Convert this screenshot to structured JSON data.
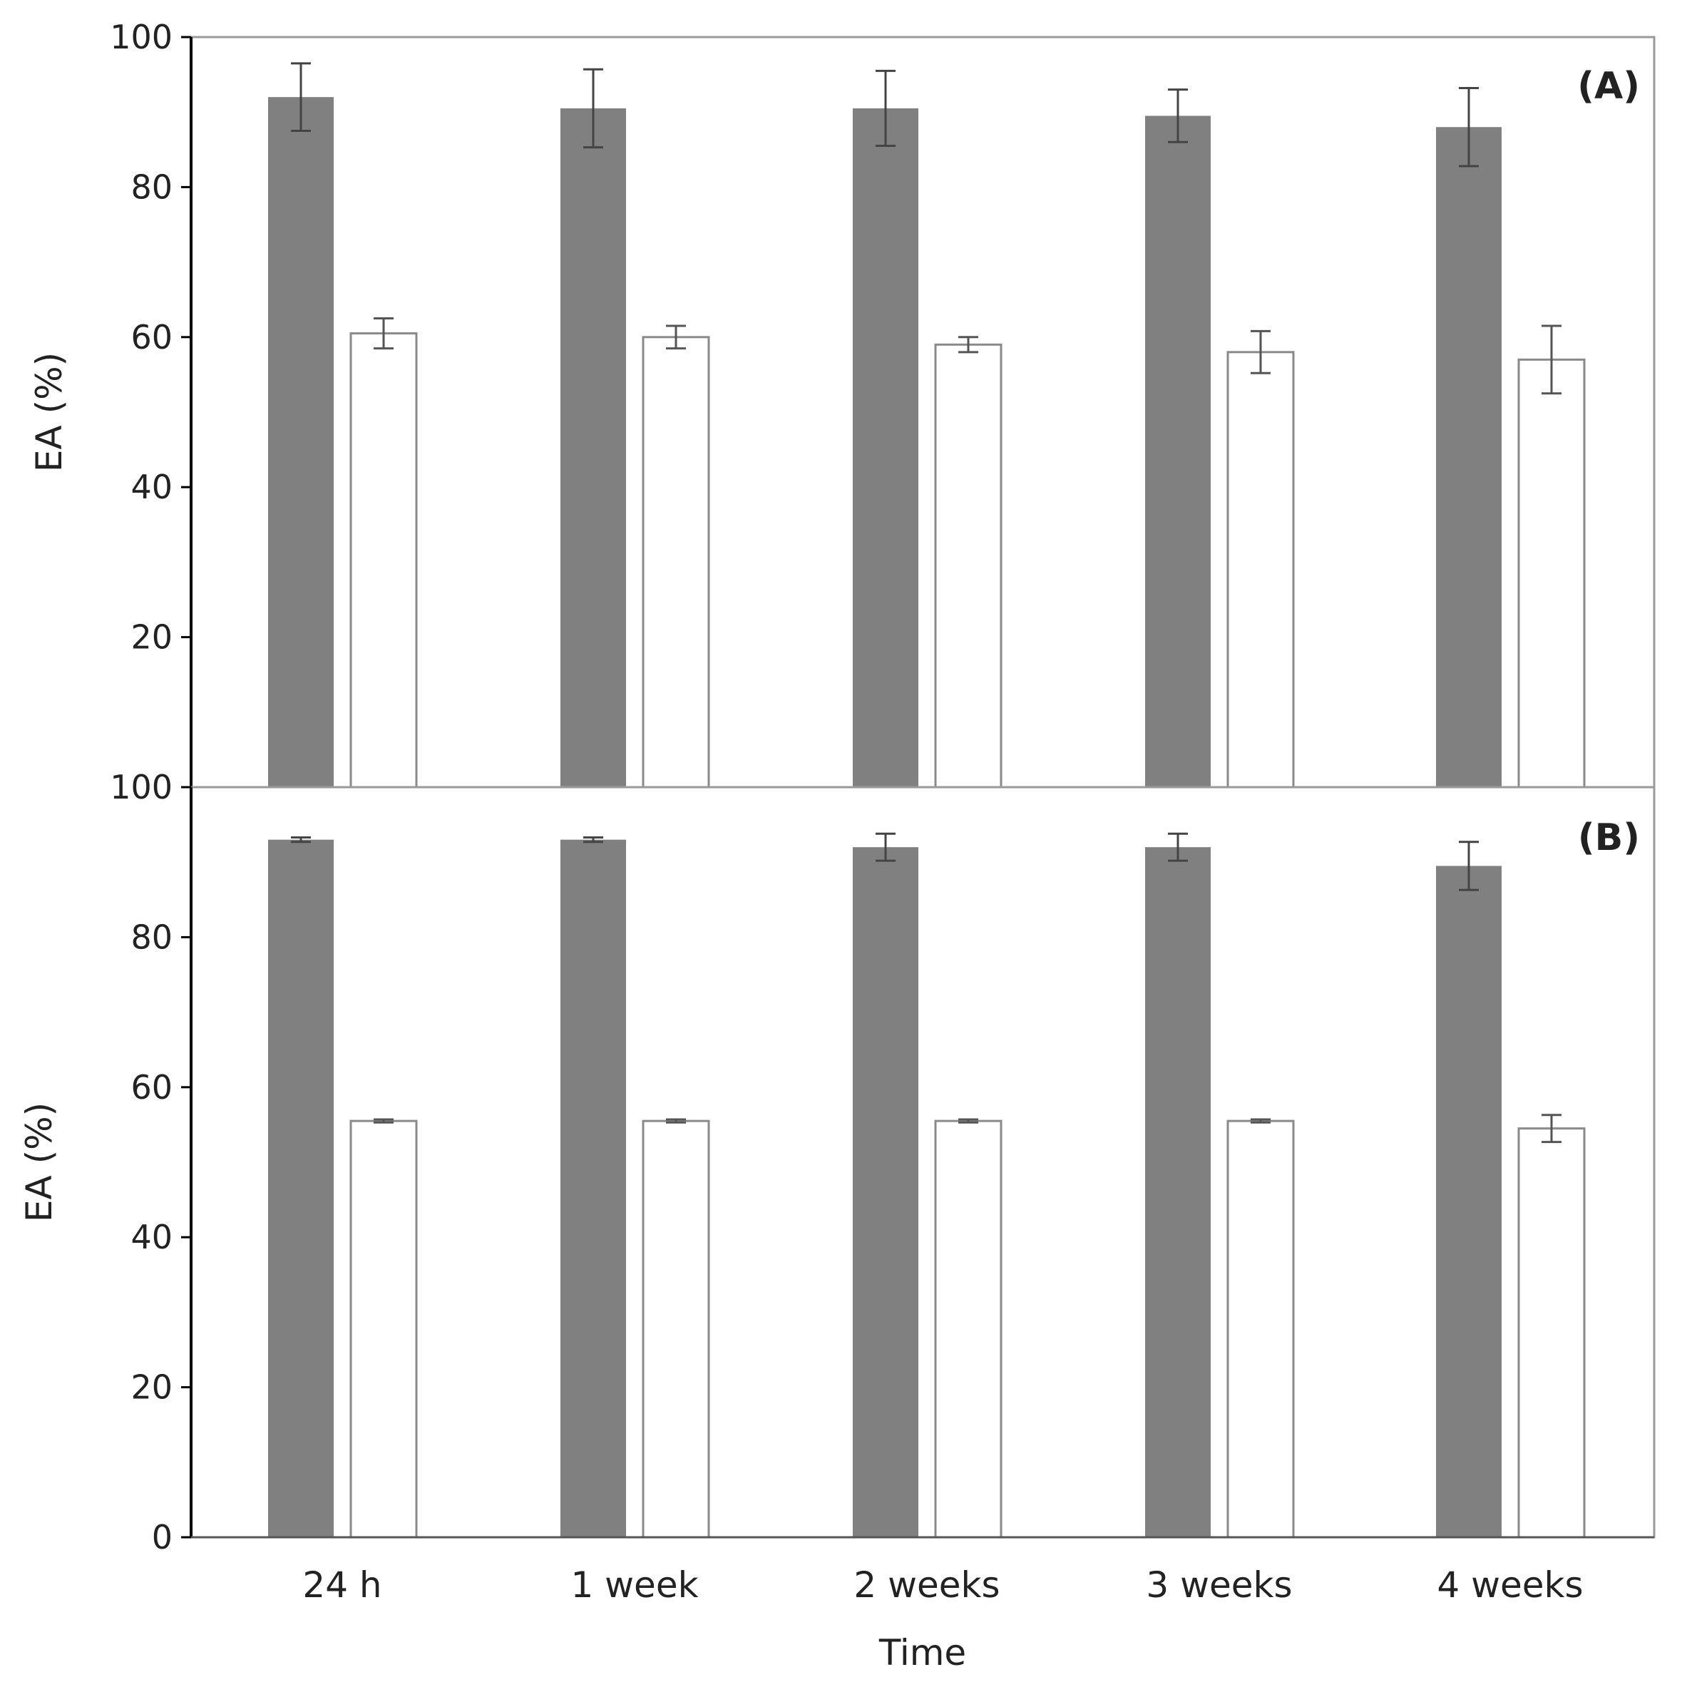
{
  "chart_data": [
    {
      "type": "bar",
      "panel_label": "(A)",
      "ylabel": "EA (%)",
      "xlabel": "",
      "ylim": [
        0,
        100
      ],
      "yticks": [
        20,
        40,
        60,
        80,
        100
      ],
      "categories": [
        "24 h",
        "1 week",
        "2 weeks",
        "3 weeks",
        "4 weeks"
      ],
      "series": [
        {
          "name": "filled",
          "color": "#808080",
          "values": [
            92,
            90.5,
            90.5,
            89.5,
            88
          ],
          "errors": [
            4.5,
            5.2,
            5,
            3.5,
            5.2
          ]
        },
        {
          "name": "open",
          "color": "#ffffff",
          "values": [
            60.5,
            60,
            59,
            58,
            57
          ],
          "errors": [
            2,
            1.5,
            1,
            2.8,
            4.5
          ]
        }
      ],
      "grid": false
    },
    {
      "type": "bar",
      "panel_label": "(B)",
      "ylabel": "EA (%)",
      "xlabel": "Time",
      "ylim": [
        0,
        100
      ],
      "yticks": [
        0,
        20,
        40,
        60,
        80,
        100
      ],
      "categories": [
        "24 h",
        "1 week",
        "2 weeks",
        "3 weeks",
        "4 weeks"
      ],
      "series": [
        {
          "name": "filled",
          "color": "#808080",
          "values": [
            93,
            93,
            92,
            92,
            89.5
          ],
          "errors": [
            0.3,
            0.3,
            1.8,
            1.8,
            3.2
          ]
        },
        {
          "name": "open",
          "color": "#ffffff",
          "values": [
            55.5,
            55.5,
            55.5,
            55.5,
            54.5
          ],
          "errors": [
            0.2,
            0.2,
            0.2,
            0.2,
            1.8
          ]
        }
      ],
      "grid": false
    }
  ]
}
